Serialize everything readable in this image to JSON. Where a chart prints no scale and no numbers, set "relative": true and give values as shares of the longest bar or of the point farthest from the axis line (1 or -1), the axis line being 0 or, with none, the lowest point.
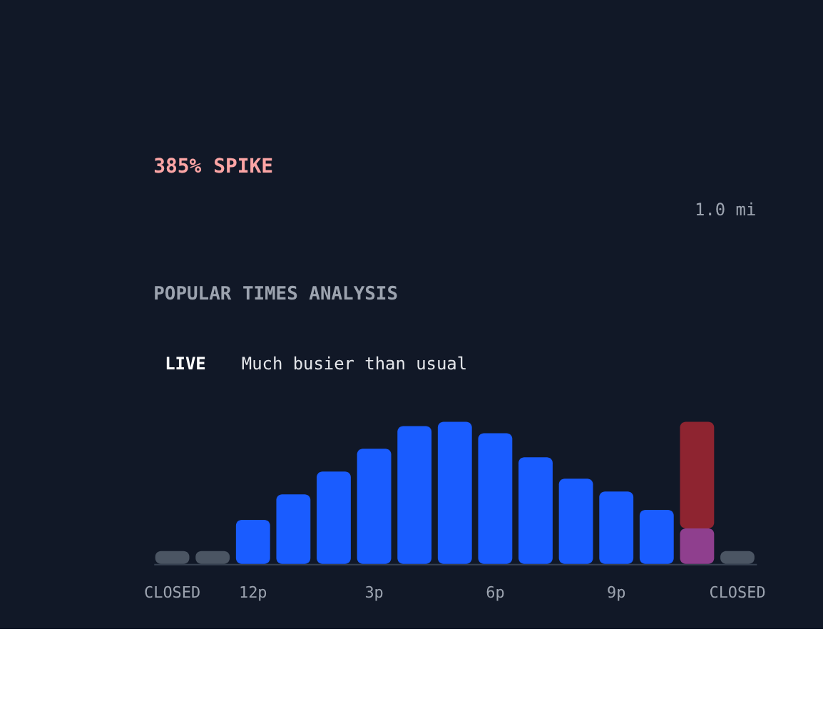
{
  "chart_data": {
    "type": "bar",
    "title": "POPULAR TIMES ANALYSIS",
    "annotations": [
      "385% SPIKE",
      "1.0 mi",
      "LIVE",
      "Much busier than usual"
    ],
    "categories": [
      "CLOSED",
      null,
      "12p",
      null,
      null,
      "3p",
      null,
      null,
      "6p",
      null,
      null,
      "9p",
      null,
      null,
      "CLOSED"
    ],
    "relative": true,
    "stacked": true,
    "grid": false,
    "series": [
      {
        "colors": [
          "#4b5563",
          "#4b5563",
          "#1a5cff",
          "#1a5cff",
          "#1a5cff",
          "#1a5cff",
          "#1a5cff",
          "#1a5cff",
          "#1a5cff",
          "#1a5cff",
          "#1a5cff",
          "#1a5cff",
          "#1a5cff",
          "#8f3f8e",
          "#4b5563"
        ],
        "values": [
          0.09,
          0.09,
          0.31,
          0.49,
          0.65,
          0.81,
          0.97,
          1.0,
          0.92,
          0.75,
          0.6,
          0.51,
          0.38,
          0.25,
          0.09
        ]
      },
      {
        "color": "#8e2430",
        "values": [
          null,
          null,
          null,
          null,
          null,
          null,
          null,
          null,
          null,
          null,
          null,
          null,
          null,
          0.75,
          null
        ]
      }
    ]
  }
}
